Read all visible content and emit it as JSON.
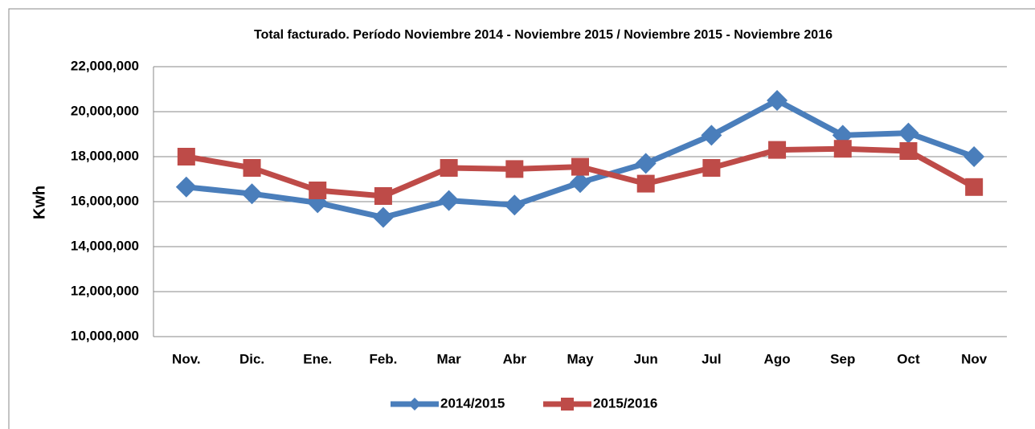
{
  "chart_data": {
    "type": "line",
    "title": "Total facturado. Período Noviembre 2014 - Noviembre 2015 / Noviembre 2015 - Noviembre 2016",
    "y_label": "Kwh",
    "categories": [
      "Nov.",
      "Dic.",
      "Ene.",
      "Feb.",
      "Mar",
      "Abr",
      "May",
      "Jun",
      "Jul",
      "Ago",
      "Sep",
      "Oct",
      "Nov"
    ],
    "series": [
      {
        "name": "2014/2015",
        "color": "#4a7ebb",
        "marker": "diamond",
        "values": [
          16650000,
          16350000,
          15950000,
          15300000,
          16050000,
          15850000,
          16850000,
          17700000,
          18950000,
          20500000,
          18950000,
          19050000,
          18000000
        ]
      },
      {
        "name": "2015/2016",
        "color": "#be4b48",
        "marker": "square",
        "values": [
          18000000,
          17500000,
          16500000,
          16250000,
          17500000,
          17450000,
          17550000,
          16800000,
          17500000,
          18300000,
          18350000,
          18250000,
          16650000
        ]
      }
    ],
    "ylim": [
      10000000,
      22000000
    ],
    "yticks": [
      {
        "value": 10000000,
        "label": "10,000,000"
      },
      {
        "value": 12000000,
        "label": "12,000,000"
      },
      {
        "value": 14000000,
        "label": "14,000,000"
      },
      {
        "value": 16000000,
        "label": "16,000,000"
      },
      {
        "value": 18000000,
        "label": "18,000,000"
      },
      {
        "value": 20000000,
        "label": "20,000,000"
      },
      {
        "value": 22000000,
        "label": "22,000,000"
      }
    ],
    "grid": true,
    "legend": "bottom"
  }
}
